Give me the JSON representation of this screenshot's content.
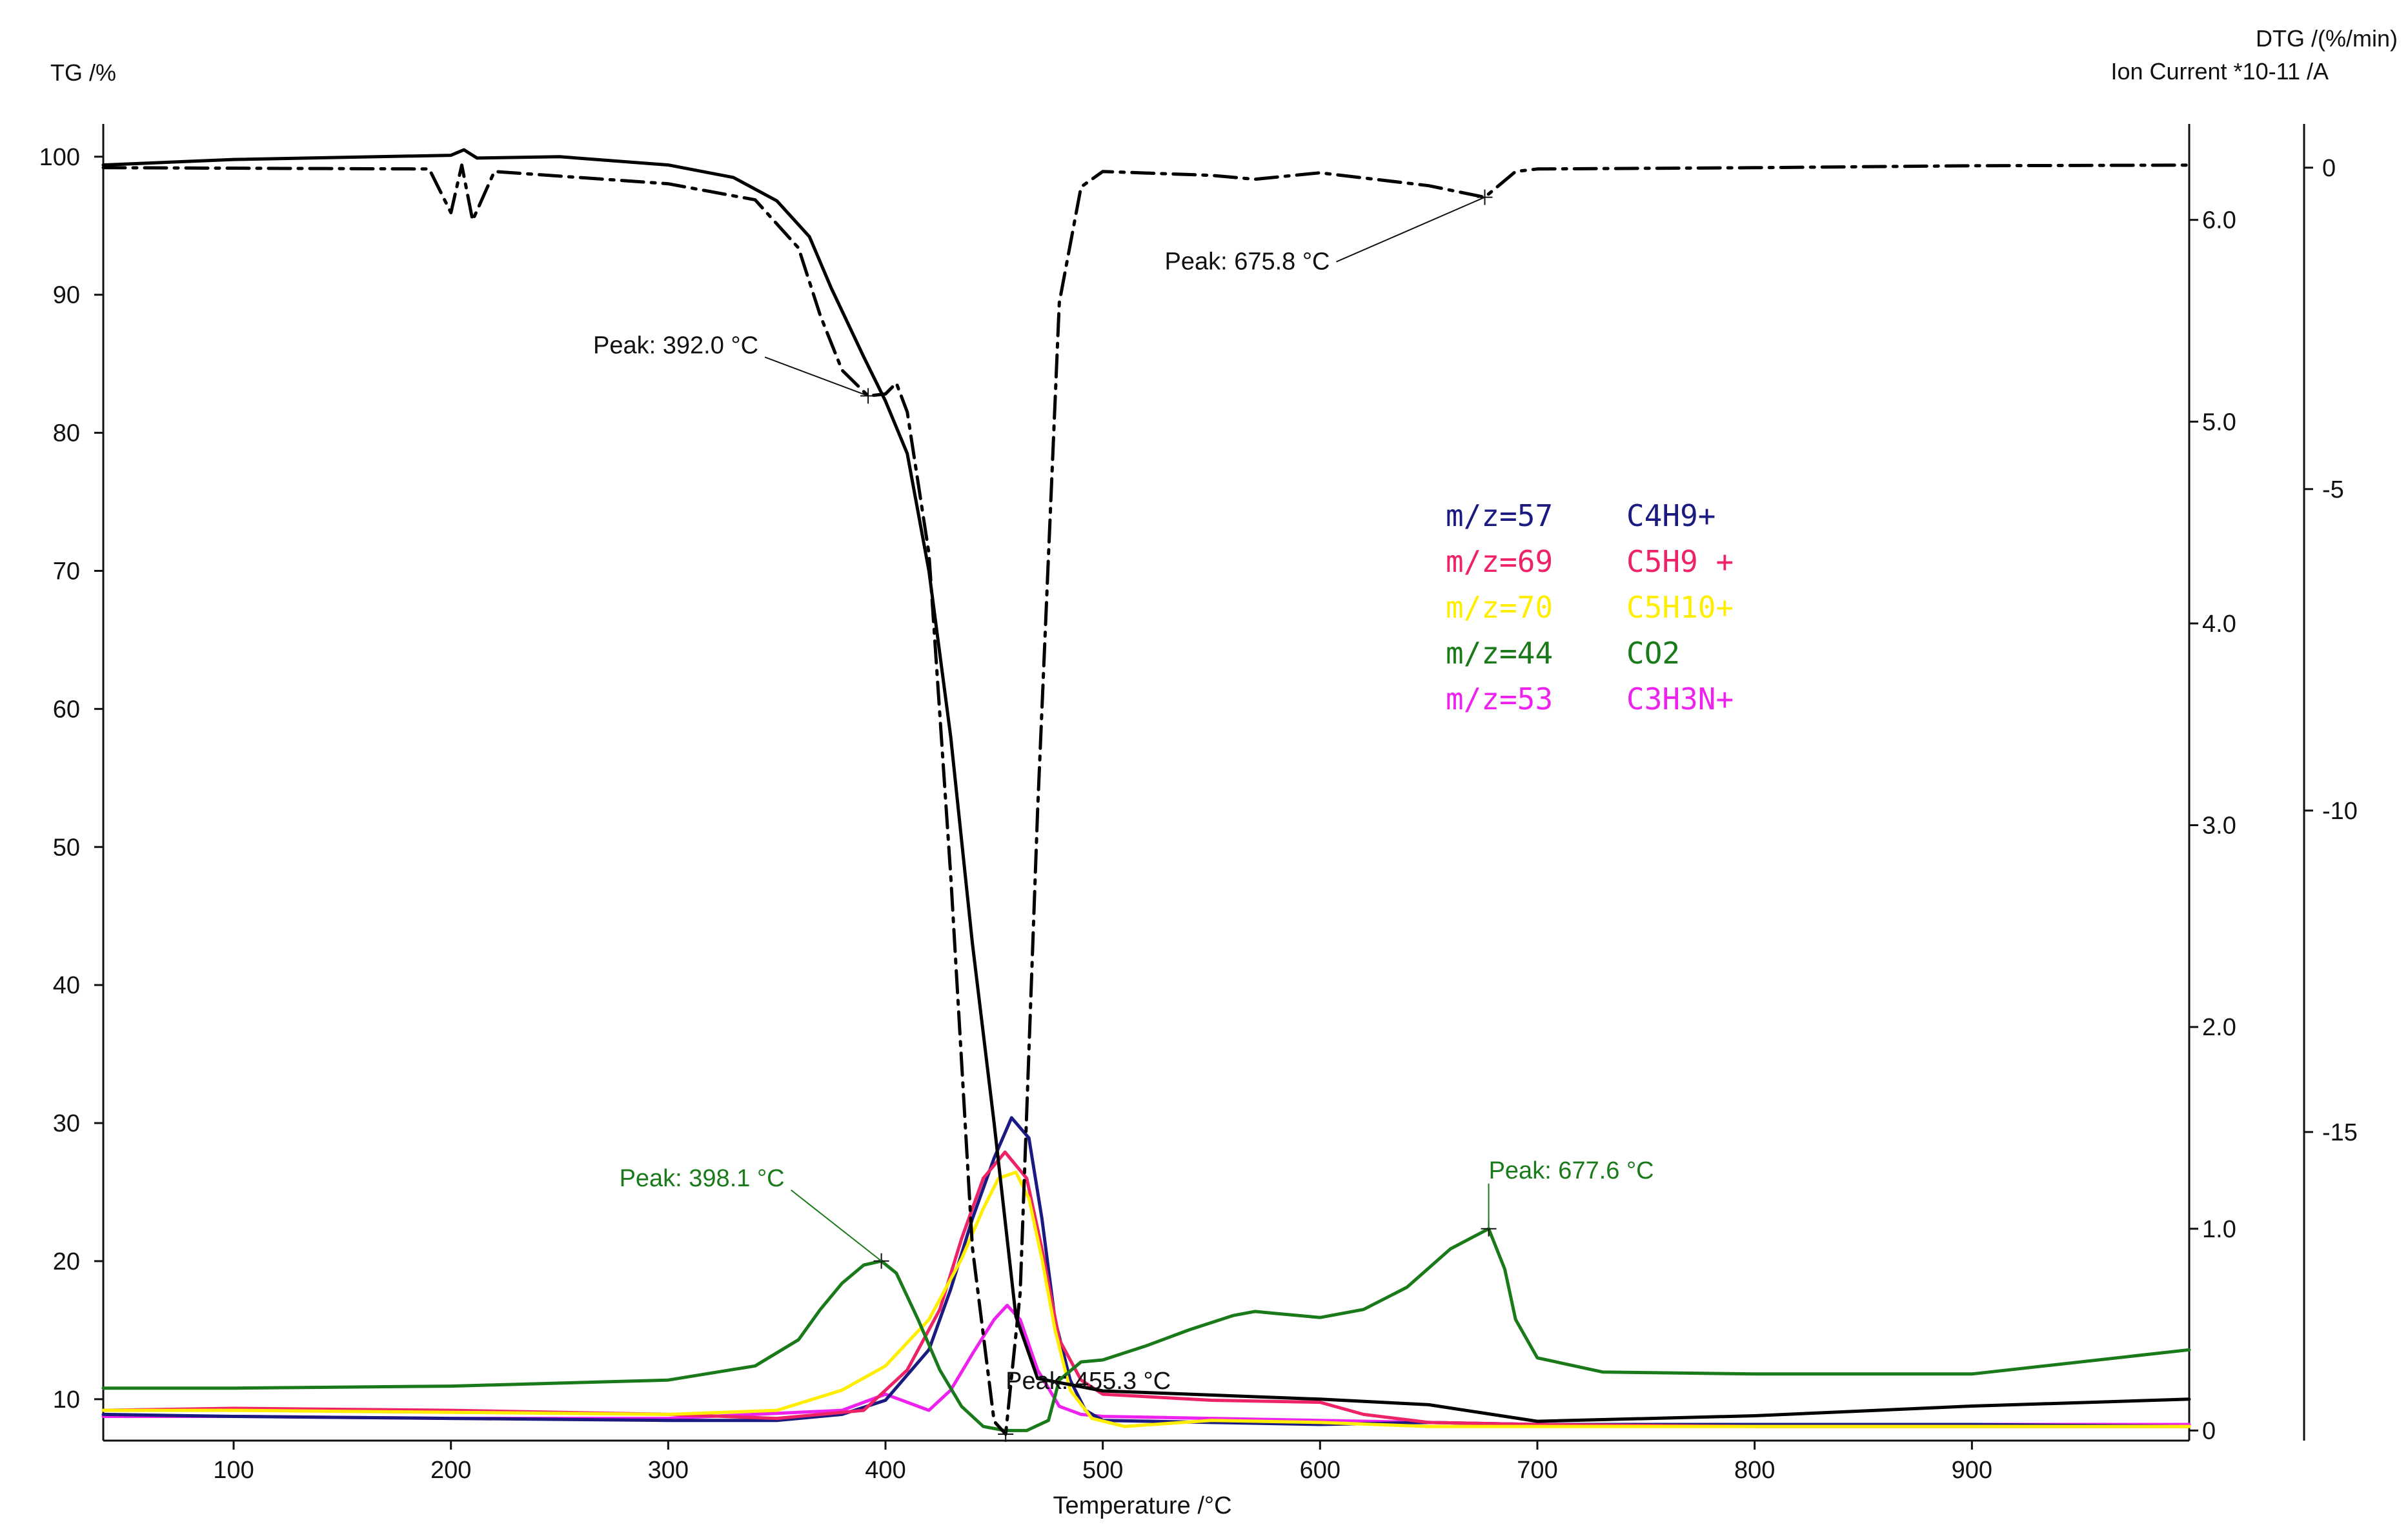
{
  "chart_data": {
    "type": "line",
    "title": "",
    "xlabel": "Temperature /°C",
    "ylabel_left": "TG /%",
    "ylabel_right": [
      "DTG /(%/min)",
      "Ion Current *10-11 /A"
    ],
    "xlim": [
      40,
      1000
    ],
    "x_ticks": [
      "100",
      "200",
      "300",
      "400",
      "500",
      "600",
      "700",
      "800",
      "900"
    ],
    "tg_axis": {
      "ylim": [
        7,
        102
      ],
      "ticks": [
        "10",
        "20",
        "30",
        "40",
        "50",
        "60",
        "70",
        "80",
        "90",
        "100"
      ]
    },
    "ion_axis": {
      "ylim": [
        -0.05,
        6.45
      ],
      "ticks": [
        "0",
        "1.0",
        "2.0",
        "3.0",
        "4.0",
        "5.0",
        "6.0"
      ]
    },
    "dtg_axis": {
      "ylim": [
        -19.8,
        0.6
      ],
      "ticks": [
        "0",
        "-5",
        "-10",
        "-15"
      ]
    },
    "grid": false,
    "legend_position": "center",
    "colors": {
      "tg": "#000000",
      "dtg": "#000000",
      "m57": "#1a1a80",
      "m69": "#ee2266",
      "m70": "#ffee00",
      "m44": "#1a7a1a",
      "m53": "#ee22ee"
    },
    "series": [
      {
        "key": "tg",
        "axis": "tg",
        "style": "solid",
        "x": [
          40,
          100,
          200,
          206,
          212,
          250,
          300,
          330,
          350,
          365,
          375,
          390,
          400,
          410,
          420,
          430,
          440,
          450,
          460,
          470,
          500,
          600,
          650,
          700,
          800,
          900,
          1000
        ],
        "y": [
          99.4,
          99.8,
          100.1,
          100.5,
          99.9,
          100.0,
          99.4,
          98.5,
          96.8,
          94.2,
          90.5,
          85.5,
          82.3,
          78.5,
          70.0,
          58.0,
          43.0,
          30.0,
          16.0,
          11.5,
          10.6,
          10.0,
          9.6,
          8.4,
          8.8,
          9.5,
          10.0
        ]
      },
      {
        "key": "dtg",
        "axis": "dtg",
        "style": "dashdot",
        "x": [
          40,
          190,
          200,
          205,
          210,
          220,
          300,
          340,
          360,
          370,
          380,
          392,
          400,
          405,
          410,
          420,
          430,
          440,
          450,
          455.3,
          462,
          470,
          480,
          490,
          500,
          550,
          570,
          600,
          650,
          675.8,
          690,
          700,
          800,
          900,
          1000
        ],
        "y": [
          0,
          -0.02,
          -0.7,
          0.04,
          -0.82,
          -0.06,
          -0.25,
          -0.5,
          -1.25,
          -2.3,
          -3.15,
          -3.55,
          -3.52,
          -3.35,
          -3.8,
          -6.0,
          -11.0,
          -16.8,
          -19.5,
          -19.7,
          -17.5,
          -10.0,
          -2.1,
          -0.3,
          -0.06,
          -0.12,
          -0.18,
          -0.08,
          -0.28,
          -0.46,
          -0.06,
          -0.02,
          0,
          0.03,
          0.04
        ]
      },
      {
        "key": "m44",
        "axis": "ion",
        "style": "solid",
        "x": [
          40,
          100,
          200,
          300,
          340,
          360,
          370,
          380,
          390,
          398.1,
          405,
          415,
          425,
          435,
          445,
          455,
          465,
          475,
          480,
          490,
          500,
          520,
          540,
          560,
          570,
          580,
          600,
          620,
          640,
          660,
          677.6,
          685,
          690,
          700,
          730,
          800,
          900,
          1000
        ],
        "y": [
          0.21,
          0.21,
          0.22,
          0.25,
          0.32,
          0.45,
          0.6,
          0.73,
          0.82,
          0.84,
          0.78,
          0.55,
          0.3,
          0.12,
          0.02,
          0.0,
          0.0,
          0.05,
          0.25,
          0.34,
          0.35,
          0.42,
          0.5,
          0.57,
          0.59,
          0.58,
          0.56,
          0.6,
          0.71,
          0.9,
          1.0,
          0.8,
          0.55,
          0.36,
          0.29,
          0.28,
          0.28,
          0.4
        ]
      },
      {
        "key": "m57",
        "axis": "ion",
        "style": "solid",
        "x": [
          40,
          100,
          200,
          300,
          350,
          380,
          400,
          420,
          430,
          440,
          450,
          458,
          466,
          472,
          478,
          485,
          492,
          500,
          550,
          600,
          650,
          700,
          800,
          900,
          1000
        ],
        "y": [
          0.08,
          0.07,
          0.06,
          0.05,
          0.05,
          0.08,
          0.15,
          0.4,
          0.7,
          1.05,
          1.35,
          1.55,
          1.45,
          1.05,
          0.55,
          0.25,
          0.1,
          0.05,
          0.04,
          0.03,
          0.04,
          0.03,
          0.03,
          0.03,
          0.02
        ]
      },
      {
        "key": "m69",
        "axis": "ion",
        "style": "solid",
        "x": [
          40,
          100,
          200,
          300,
          350,
          390,
          410,
          425,
          435,
          445,
          455,
          465,
          472,
          480,
          490,
          500,
          550,
          600,
          620,
          650,
          700,
          800,
          900,
          1000
        ],
        "y": [
          0.1,
          0.11,
          0.1,
          0.08,
          0.06,
          0.1,
          0.3,
          0.6,
          0.95,
          1.25,
          1.38,
          1.25,
          0.9,
          0.45,
          0.25,
          0.18,
          0.15,
          0.14,
          0.08,
          0.04,
          0.03,
          0.02,
          0.02,
          0.02
        ]
      },
      {
        "key": "m70",
        "axis": "ion",
        "style": "solid",
        "x": [
          40,
          100,
          200,
          300,
          350,
          380,
          400,
          420,
          435,
          445,
          452,
          460,
          466,
          472,
          478,
          485,
          495,
          510,
          550,
          600,
          650,
          700,
          800,
          900,
          1000
        ],
        "y": [
          0.1,
          0.1,
          0.09,
          0.08,
          0.1,
          0.2,
          0.32,
          0.55,
          0.85,
          1.1,
          1.25,
          1.28,
          1.15,
          0.85,
          0.5,
          0.2,
          0.06,
          0.02,
          0.05,
          0.04,
          0.02,
          0.02,
          0.02,
          0.02,
          0.02
        ]
      },
      {
        "key": "m53",
        "axis": "ion",
        "style": "solid",
        "x": [
          40,
          100,
          200,
          300,
          380,
          400,
          410,
          420,
          430,
          440,
          450,
          456,
          462,
          470,
          480,
          490,
          500,
          550,
          600,
          650,
          700,
          800,
          900,
          1000
        ],
        "y": [
          0.07,
          0.07,
          0.06,
          0.06,
          0.1,
          0.18,
          0.14,
          0.1,
          0.2,
          0.38,
          0.55,
          0.62,
          0.55,
          0.3,
          0.12,
          0.08,
          0.07,
          0.06,
          0.05,
          0.04,
          0.03,
          0.03,
          0.03,
          0.03
        ]
      }
    ],
    "legend": [
      {
        "key": "m57",
        "mz": "m/z=57",
        "formula": "C4H9+"
      },
      {
        "key": "m69",
        "mz": "m/z=69",
        "formula": "C5H9 +"
      },
      {
        "key": "m70",
        "mz": "m/z=70",
        "formula": "C5H10+"
      },
      {
        "key": "m44",
        "mz": "m/z=44",
        "formula": "CO2"
      },
      {
        "key": "m53",
        "mz": "m/z=53",
        "formula": "C3H3N+"
      }
    ],
    "annotations": [
      {
        "text": "Peak: 392.0 °C",
        "series": "dtg",
        "x": 392.0
      },
      {
        "text": "Peak: 675.8 °C",
        "series": "dtg",
        "x": 675.8
      },
      {
        "text": "Peak: 455.3 °C",
        "series": "dtg",
        "x": 455.3
      },
      {
        "text": "Peak: 398.1 °C",
        "series": "m44",
        "x": 398.1
      },
      {
        "text": "Peak: 677.6 °C",
        "series": "m44",
        "x": 677.6
      }
    ]
  }
}
